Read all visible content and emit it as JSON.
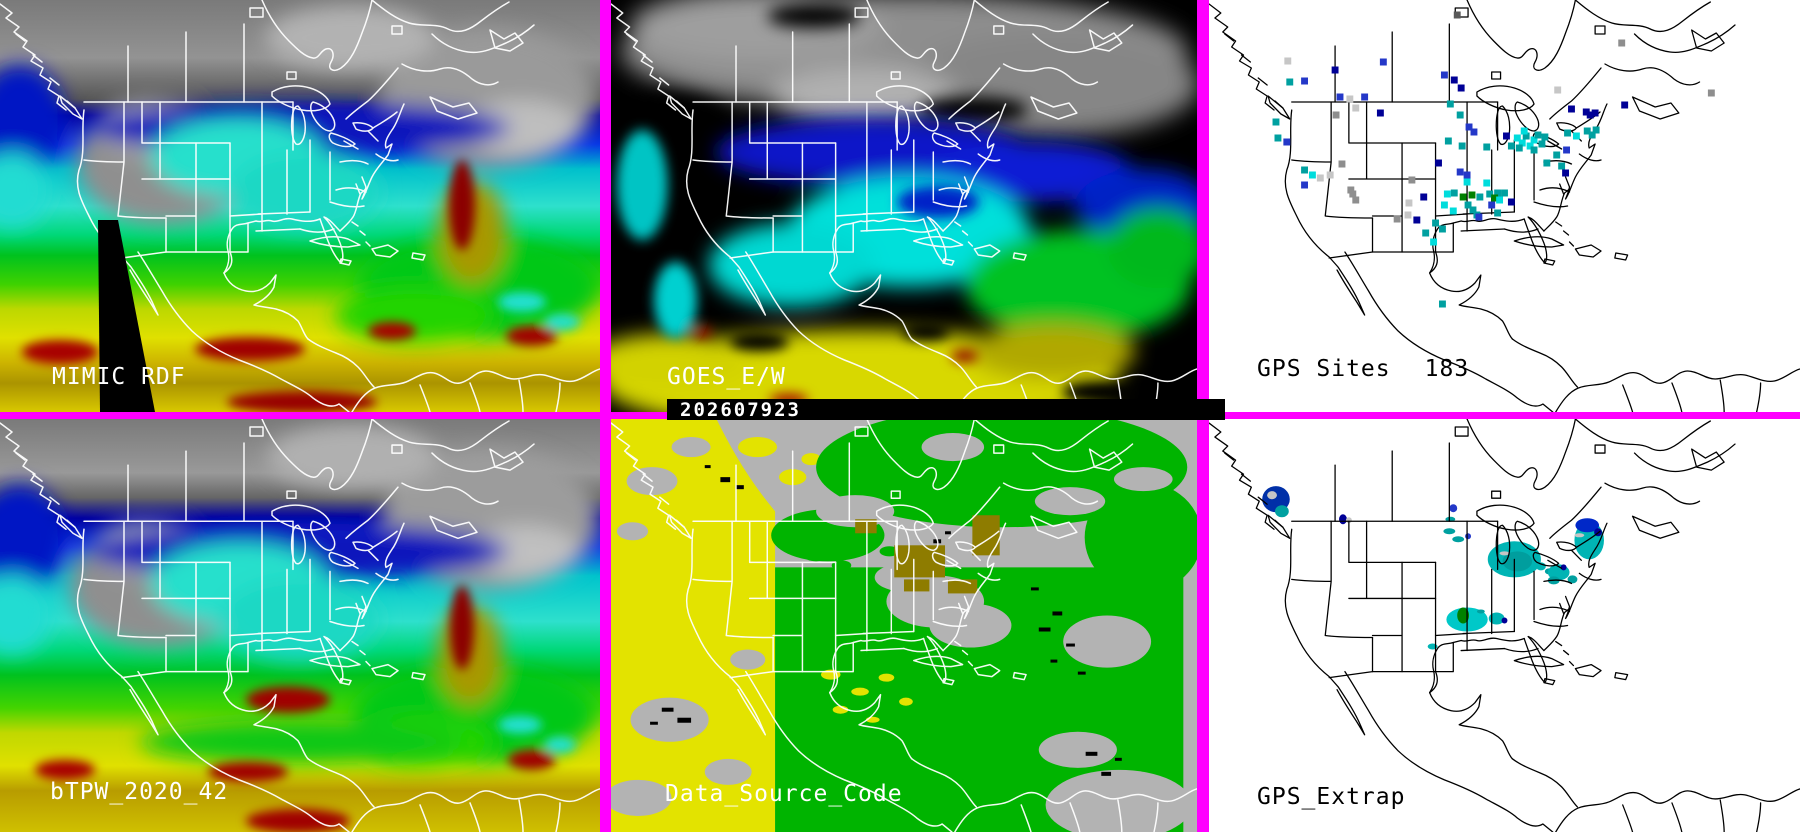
{
  "timestamp": {
    "text": "202607923"
  },
  "panels": {
    "mimic": {
      "label": "MIMIC RDF"
    },
    "goes": {
      "label": "GOES_E/W"
    },
    "gps_sites": {
      "label": "GPS Sites",
      "count": "183"
    },
    "btpw": {
      "label": "bTPW_2020_42"
    },
    "data_source": {
      "label": "Data_Source_Code"
    },
    "gps_extrap": {
      "label": "GPS_Extrap"
    }
  },
  "palette": {
    "separator_magenta": "#ff00ff",
    "navy": "#000096",
    "blue": "#2438c8",
    "teal": "#00a0a0",
    "cyan": "#00dcdc",
    "gray": "#8e8e8e",
    "lightgray": "#c6c6c6",
    "darkgray": "#5a5a5a",
    "green": "#008000",
    "tpw_gray": "#8f8f8f",
    "tpw_blue": "#0000a8",
    "tpw_cyan": "#2ee0cc",
    "tpw_green": "#00c21e",
    "tpw_yellow": "#e0e000",
    "tpw_red": "#a00000",
    "ds_yellow": "#e3e300",
    "ds_green": "#00b400",
    "ds_gray": "#b3b3b3",
    "ds_olive": "#8e7c00"
  },
  "gps_dots": [
    [
      80,
      61,
      "lightgray"
    ],
    [
      97,
      81,
      "blue"
    ],
    [
      82,
      82,
      "teal"
    ],
    [
      128,
      70,
      "navy"
    ],
    [
      133,
      97,
      "blue"
    ],
    [
      158,
      97,
      "blue"
    ],
    [
      143,
      99,
      "lightgray"
    ],
    [
      149,
      108,
      "lightgray"
    ],
    [
      129,
      115,
      "gray"
    ],
    [
      174,
      113,
      "navy"
    ],
    [
      177,
      62,
      "blue"
    ],
    [
      68,
      122,
      "teal"
    ],
    [
      70,
      138,
      "teal"
    ],
    [
      79,
      142,
      "blue"
    ],
    [
      97,
      170,
      "teal"
    ],
    [
      105,
      175,
      "cyan"
    ],
    [
      113,
      178,
      "lightgray"
    ],
    [
      123,
      175,
      "lightgray"
    ],
    [
      97,
      185,
      "blue"
    ],
    [
      135,
      164,
      "gray"
    ],
    [
      144,
      190,
      "gray"
    ],
    [
      146,
      194,
      "gray"
    ],
    [
      149,
      200,
      "gray"
    ],
    [
      203,
      203,
      "lightgray"
    ],
    [
      202,
      215,
      "lightgray"
    ],
    [
      191,
      219,
      "gray"
    ],
    [
      206,
      180,
      "gray"
    ],
    [
      252,
      15,
      "darkgray"
    ],
    [
      239,
      75,
      "blue"
    ],
    [
      249,
      80,
      "navy"
    ],
    [
      256,
      88,
      "navy"
    ],
    [
      245,
      104,
      "teal"
    ],
    [
      255,
      115,
      "teal"
    ],
    [
      264,
      127,
      "blue"
    ],
    [
      269,
      132,
      "blue"
    ],
    [
      243,
      141,
      "teal"
    ],
    [
      257,
      146,
      "teal"
    ],
    [
      233,
      163,
      "navy"
    ],
    [
      419,
      43,
      "gray"
    ],
    [
      354,
      90,
      "lightgray"
    ],
    [
      510,
      93,
      "gray"
    ],
    [
      422,
      105,
      "navy"
    ],
    [
      368,
      109,
      "navy"
    ],
    [
      282,
      147,
      "teal"
    ],
    [
      302,
      136,
      "navy"
    ],
    [
      307,
      146,
      "teal"
    ],
    [
      313,
      138,
      "cyan"
    ],
    [
      318,
      143,
      "cyan"
    ],
    [
      322,
      136,
      "teal"
    ],
    [
      326,
      146,
      "cyan"
    ],
    [
      330,
      140,
      "cyan"
    ],
    [
      334,
      135,
      "teal"
    ],
    [
      338,
      144,
      "teal"
    ],
    [
      341,
      137,
      "teal"
    ],
    [
      330,
      150,
      "teal"
    ],
    [
      320,
      131,
      "cyan"
    ],
    [
      315,
      148,
      "teal"
    ],
    [
      364,
      133,
      "teal"
    ],
    [
      373,
      136,
      "cyan"
    ],
    [
      383,
      112,
      "navy"
    ],
    [
      387,
      115,
      "navy"
    ],
    [
      392,
      113,
      "navy"
    ],
    [
      384,
      131,
      "teal"
    ],
    [
      389,
      135,
      "teal"
    ],
    [
      393,
      130,
      "teal"
    ],
    [
      363,
      150,
      "blue"
    ],
    [
      353,
      155,
      "teal"
    ],
    [
      343,
      163,
      "teal"
    ],
    [
      362,
      173,
      "navy"
    ],
    [
      358,
      166,
      "teal"
    ],
    [
      255,
      172,
      "blue"
    ],
    [
      262,
      175,
      "blue"
    ],
    [
      262,
      182,
      "cyan"
    ],
    [
      282,
      183,
      "cyan"
    ],
    [
      218,
      197,
      "navy"
    ],
    [
      242,
      194,
      "cyan"
    ],
    [
      249,
      193,
      "teal"
    ],
    [
      239,
      205,
      "cyan"
    ],
    [
      248,
      211,
      "cyan"
    ],
    [
      258,
      197,
      "green"
    ],
    [
      267,
      195,
      "green"
    ],
    [
      263,
      205,
      "teal"
    ],
    [
      268,
      210,
      "teal"
    ],
    [
      272,
      215,
      "teal"
    ],
    [
      275,
      197,
      "teal"
    ],
    [
      285,
      194,
      "teal"
    ],
    [
      293,
      193,
      "teal"
    ],
    [
      287,
      205,
      "blue"
    ],
    [
      293,
      213,
      "teal"
    ],
    [
      307,
      202,
      "navy"
    ],
    [
      211,
      220,
      "navy"
    ],
    [
      230,
      223,
      "teal"
    ],
    [
      237,
      229,
      "teal"
    ],
    [
      220,
      233,
      "teal"
    ],
    [
      228,
      242,
      "cyan"
    ],
    [
      274,
      217,
      "blue"
    ],
    [
      290,
      198,
      "green"
    ],
    [
      295,
      200,
      "cyan"
    ],
    [
      300,
      193,
      "teal"
    ],
    [
      237,
      304,
      "teal"
    ]
  ],
  "gps_extrap_blobs": [
    [
      68,
      80,
      14,
      13,
      "#0030a8"
    ],
    [
      64,
      76,
      5,
      4,
      "#c6c6c6"
    ],
    [
      74,
      92,
      7,
      6,
      "#00a0a0"
    ],
    [
      136,
      100,
      4,
      5,
      "#000096"
    ],
    [
      142,
      101,
      3,
      3,
      "#c6c6c6"
    ],
    [
      248,
      89,
      4,
      4,
      "#2438c8"
    ],
    [
      245,
      100,
      5,
      2.5,
      "#00a0a0"
    ],
    [
      244,
      112,
      6,
      3,
      "#00a0a0"
    ],
    [
      253,
      120,
      6,
      3,
      "#00a0a0"
    ],
    [
      263,
      117,
      3,
      3,
      "#2438c8"
    ],
    [
      310,
      140,
      27,
      18,
      "#00b4b4"
    ],
    [
      313,
      142,
      15,
      10,
      "#009e9e"
    ],
    [
      300,
      134,
      5,
      2,
      "#c6c6c6"
    ],
    [
      337,
      147,
      5,
      4,
      "#00b4b4"
    ],
    [
      345,
      152,
      4,
      3,
      "#00a0a0"
    ],
    [
      355,
      153,
      11,
      8,
      "#00b4b4"
    ],
    [
      360,
      148,
      3,
      3,
      "#000096"
    ],
    [
      350,
      161,
      6,
      4,
      "#00a0a0"
    ],
    [
      369,
      160,
      5,
      4,
      "#00a0a0"
    ],
    [
      386,
      121,
      15,
      19,
      "#00b4b4"
    ],
    [
      384,
      106,
      12,
      7,
      "#0028c8"
    ],
    [
      395,
      113,
      4,
      4,
      "#000096"
    ],
    [
      376,
      116,
      5,
      2,
      "#c6c6c6"
    ],
    [
      262,
      200,
      21,
      12,
      "#00c8c8"
    ],
    [
      258,
      196,
      6,
      8,
      "#008000"
    ],
    [
      292,
      199,
      8,
      6,
      "#00b4b4"
    ],
    [
      300,
      201,
      3,
      3,
      "#000096"
    ],
    [
      227,
      227,
      5,
      3,
      "#00b4b4"
    ],
    [
      276,
      192,
      4,
      2,
      "#00a0a0"
    ]
  ]
}
